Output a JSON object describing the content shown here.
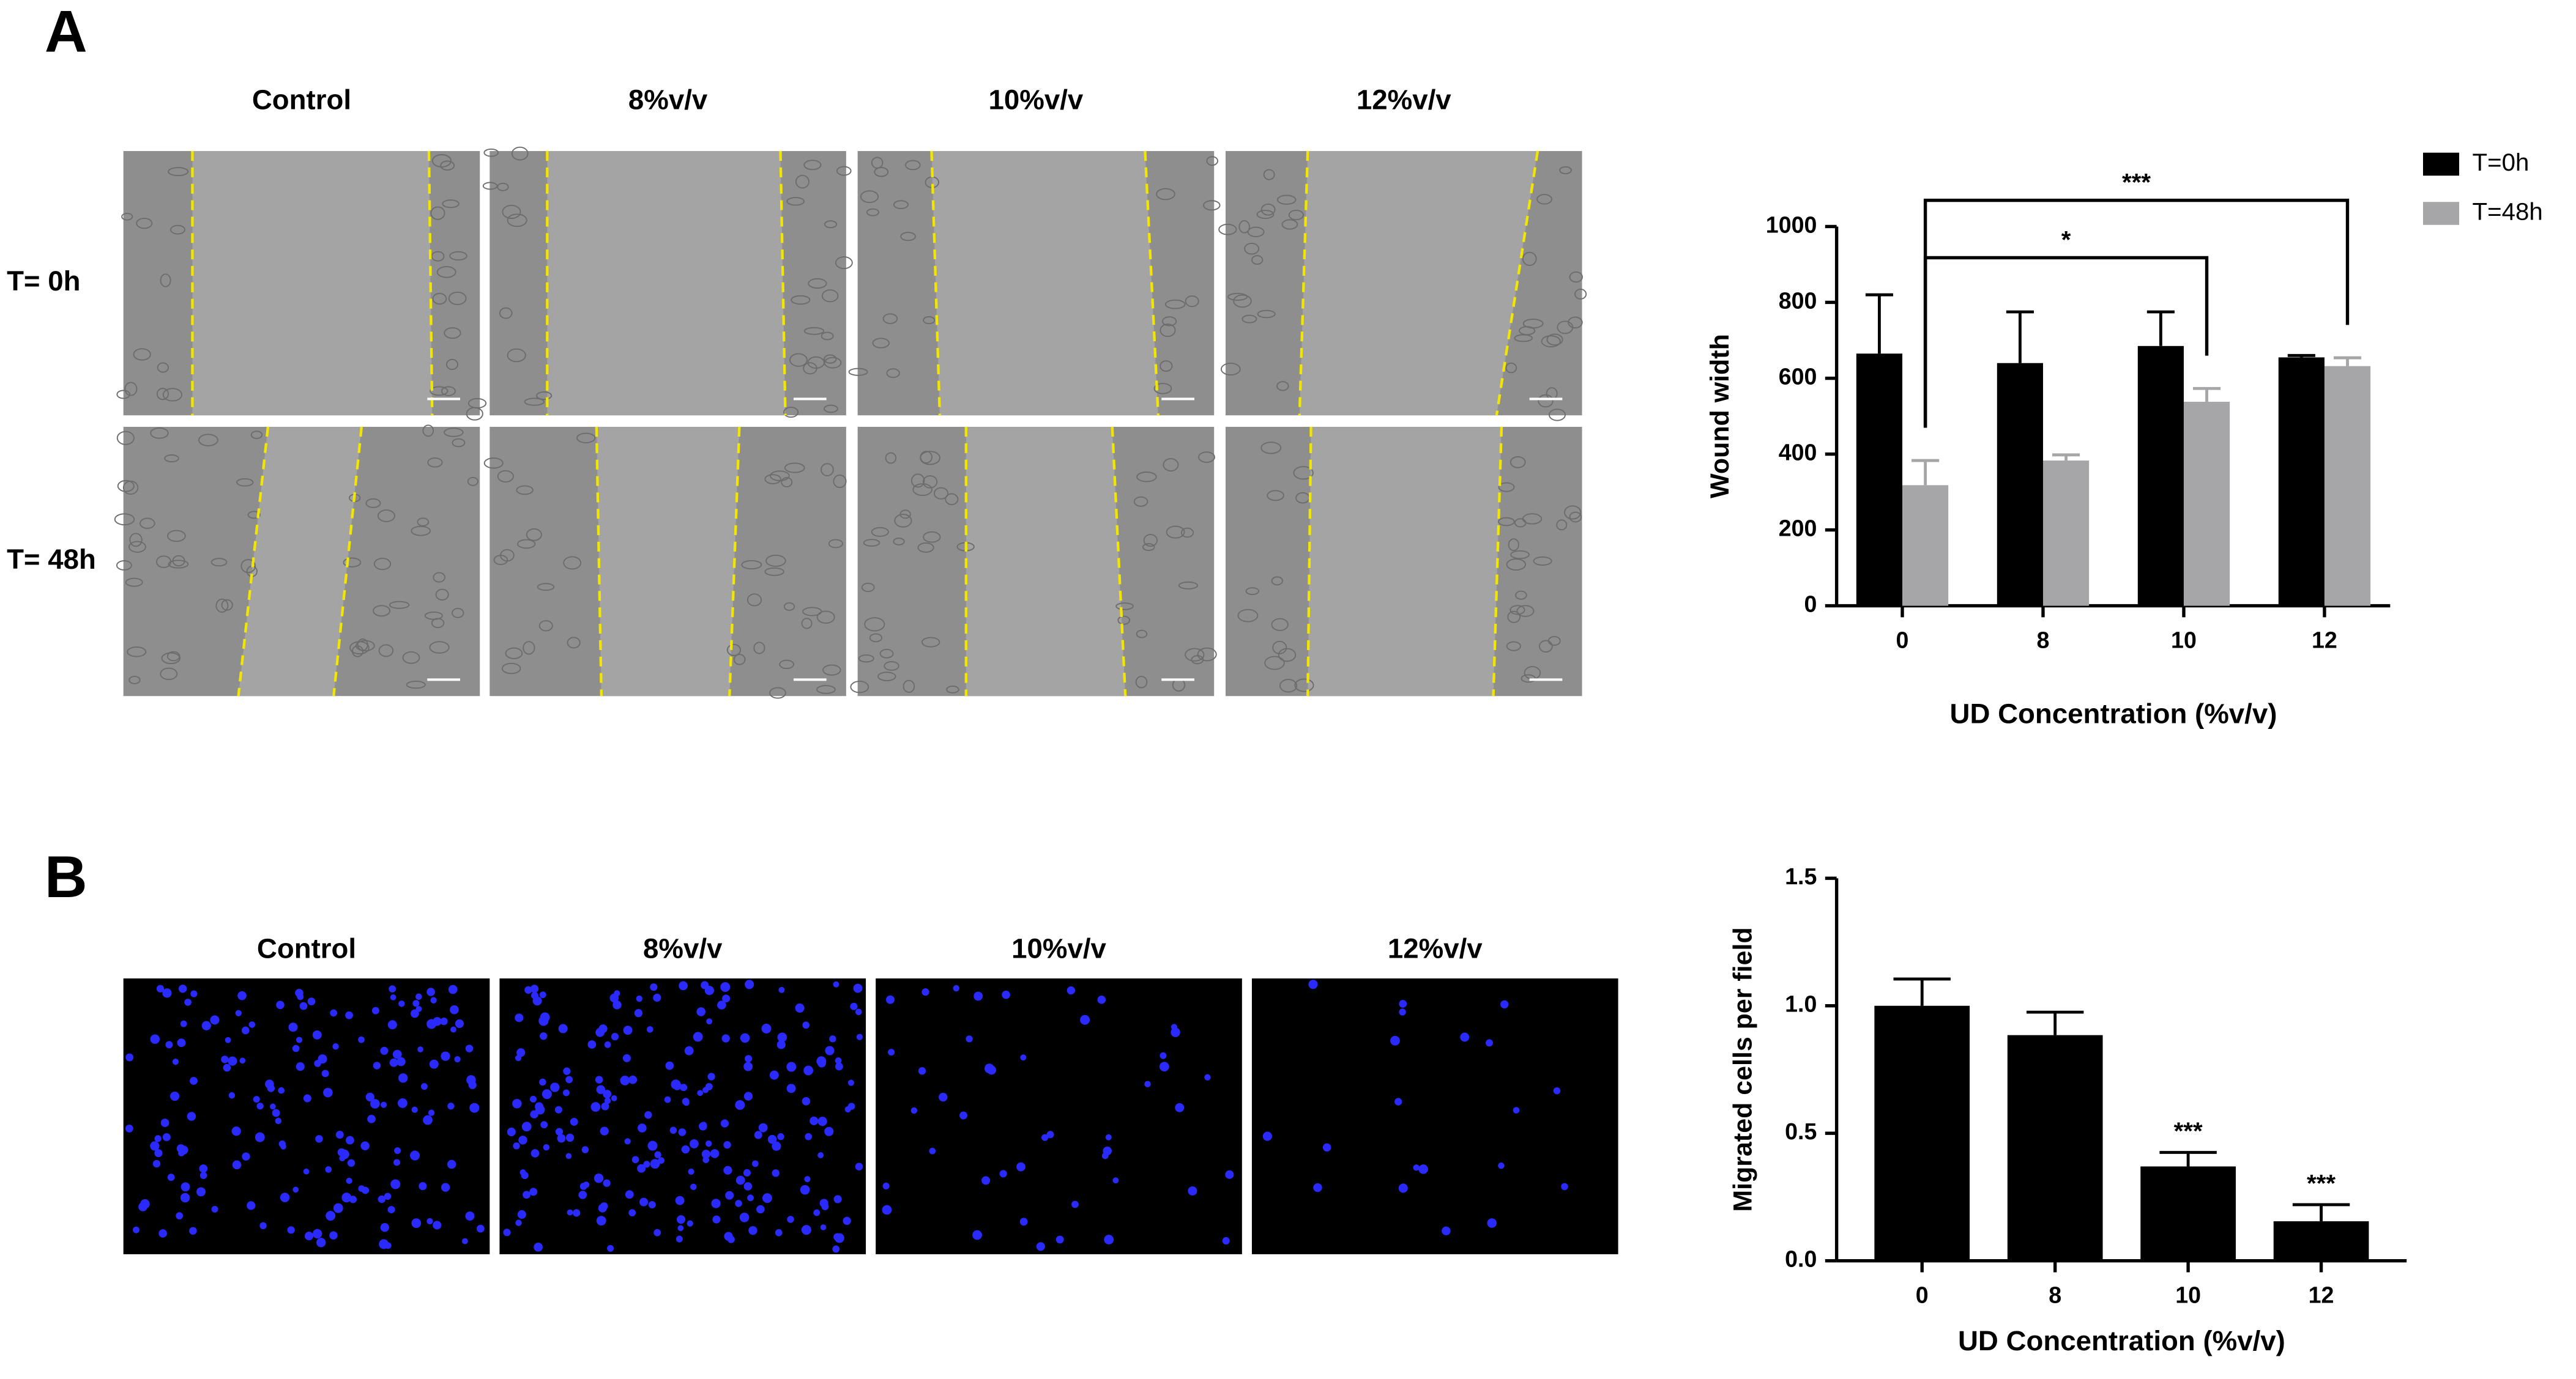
{
  "panels": [
    {
      "label": "A",
      "columns": [
        "Control",
        "8%v/v",
        "10%v/v",
        "12%v/v"
      ],
      "rows": [
        "T= 0h",
        "T= 48h"
      ]
    },
    {
      "label": "B",
      "columns": [
        "Control",
        "8%v/v",
        "10%v/v",
        "12%v/v"
      ]
    }
  ],
  "chart_data": [
    {
      "type": "bar",
      "ylabel": "Wound width",
      "xlabel": "UD Concentration (%v/v)",
      "categories": [
        "0",
        "8",
        "10",
        "12"
      ],
      "series": [
        {
          "name": "T=0h",
          "color": "#000000",
          "values": [
            665,
            640,
            685,
            655
          ],
          "errors": [
            155,
            135,
            90,
            5
          ]
        },
        {
          "name": "T=48h",
          "color": "#a6a6a8",
          "values": [
            318,
            383,
            538,
            632
          ],
          "errors": [
            65,
            15,
            35,
            22
          ]
        }
      ],
      "ylim": [
        0,
        1000
      ],
      "yticks": [
        0,
        200,
        400,
        600,
        800,
        1000
      ],
      "legend": "upper right",
      "brackets": [
        {
          "label": "*",
          "from": "0",
          "to": "10"
        },
        {
          "label": "***",
          "from": "0",
          "to": "12"
        }
      ]
    },
    {
      "type": "bar",
      "ylabel": "Migrated cells per field",
      "xlabel": "UD Concentration (%v/v)",
      "categories": [
        "0",
        "8",
        "10",
        "12"
      ],
      "color": "#000000",
      "values": [
        1.0,
        0.885,
        0.37,
        0.155
      ],
      "errors": [
        0.105,
        0.09,
        0.055,
        0.065
      ],
      "annotations": [
        null,
        null,
        "***",
        "***"
      ],
      "ylim": [
        0,
        1.5
      ],
      "yticks": [
        {
          "value": 0,
          "label": "0.0"
        },
        0.5,
        {
          "value": 1,
          "label": "1.0"
        },
        1.5
      ]
    }
  ]
}
